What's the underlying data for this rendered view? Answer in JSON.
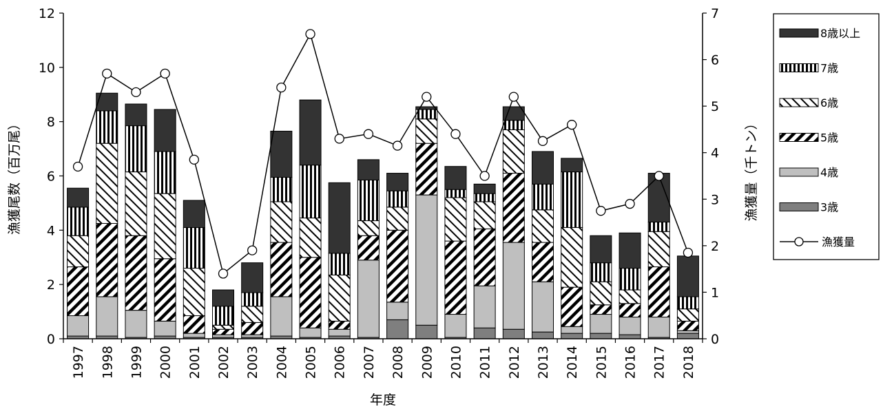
{
  "chart_data": {
    "type": "bar",
    "stacked": true,
    "combo_line": true,
    "categories": [
      "1997",
      "1998",
      "1999",
      "2000",
      "2001",
      "2002",
      "2003",
      "2004",
      "2005",
      "2006",
      "2007",
      "2008",
      "2009",
      "2010",
      "2011",
      "2012",
      "2013",
      "2014",
      "2015",
      "2016",
      "2017",
      "2018"
    ],
    "xlabel": "年度",
    "ylabel": "漁獲尾数（百万尾）",
    "y2label": "漁獲量（千トン）",
    "ylim": [
      0,
      12
    ],
    "y2lim": [
      0,
      7
    ],
    "yticks": [
      0,
      2,
      4,
      6,
      8,
      10,
      12
    ],
    "y2ticks": [
      0,
      1,
      2,
      3,
      4,
      5,
      6,
      7
    ],
    "legend_position": "right",
    "series": [
      {
        "name": "3歳",
        "pattern": "dark-gray",
        "values": [
          0.1,
          0.1,
          0.05,
          0.1,
          0.05,
          0.05,
          0.05,
          0.1,
          0.05,
          0.1,
          0.05,
          0.7,
          0.5,
          0.05,
          0.4,
          0.35,
          0.25,
          0.2,
          0.2,
          0.15,
          0.05,
          0.2
        ]
      },
      {
        "name": "4歳",
        "pattern": "light-gray",
        "values": [
          0.75,
          1.45,
          1.0,
          0.55,
          0.15,
          0.1,
          0.1,
          1.45,
          0.35,
          0.25,
          2.85,
          0.65,
          4.8,
          0.85,
          1.55,
          3.2,
          1.85,
          0.25,
          0.7,
          0.65,
          0.75,
          0.1
        ]
      },
      {
        "name": "5歳",
        "pattern": "back-diagonal",
        "values": [
          1.8,
          2.7,
          2.75,
          2.3,
          0.65,
          0.2,
          0.45,
          2.0,
          2.6,
          0.3,
          0.9,
          2.65,
          1.9,
          2.7,
          2.1,
          2.55,
          1.45,
          1.45,
          0.35,
          0.5,
          1.85,
          0.35
        ]
      },
      {
        "name": "6歳",
        "pattern": "forward-diagonal",
        "values": [
          1.15,
          2.95,
          2.35,
          2.4,
          1.75,
          0.15,
          0.6,
          1.5,
          1.45,
          1.7,
          0.55,
          0.85,
          0.9,
          1.6,
          1.0,
          1.6,
          1.2,
          2.2,
          0.85,
          0.5,
          1.3,
          0.45
        ]
      },
      {
        "name": "7歳",
        "pattern": "vertical-stripes",
        "values": [
          1.05,
          1.2,
          1.7,
          1.55,
          1.5,
          0.7,
          0.5,
          0.9,
          1.95,
          0.8,
          1.5,
          0.6,
          0.35,
          0.3,
          0.3,
          0.35,
          0.95,
          2.05,
          0.7,
          0.8,
          0.35,
          0.45
        ]
      },
      {
        "name": "8歳以上",
        "pattern": "dark",
        "values": [
          0.7,
          0.65,
          0.8,
          1.55,
          1.0,
          0.6,
          1.1,
          1.7,
          2.4,
          2.6,
          0.75,
          0.65,
          0.1,
          0.85,
          0.35,
          0.5,
          1.2,
          0.5,
          1.0,
          1.3,
          1.8,
          1.5
        ]
      }
    ],
    "line_series": {
      "name": "漁獲量",
      "axis": "right",
      "values": [
        3.7,
        5.7,
        5.3,
        5.7,
        3.85,
        1.4,
        1.9,
        5.4,
        6.55,
        4.3,
        4.4,
        4.15,
        5.2,
        4.4,
        3.5,
        5.2,
        4.25,
        4.6,
        2.75,
        2.9,
        3.5,
        1.85
      ]
    }
  }
}
